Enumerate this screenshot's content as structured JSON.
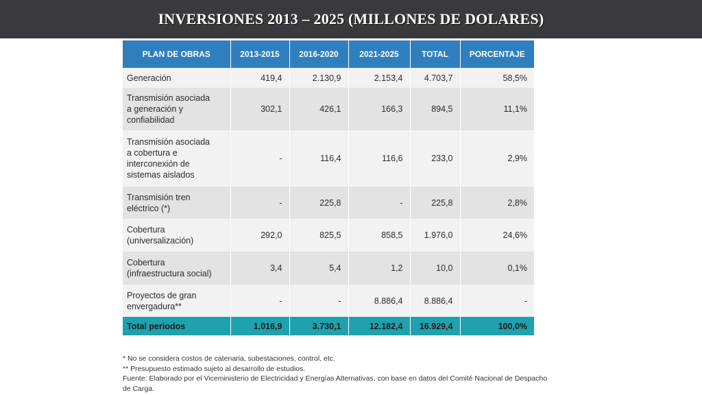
{
  "title": "INVERSIONES 2013 – 2025 (MILLONES DE DOLARES)",
  "table": {
    "headers": [
      "PLAN DE OBRAS",
      "2013-2015",
      "2016-2020",
      "2021-2025",
      "TOTAL",
      "PORCENTAJE"
    ],
    "rows": [
      {
        "label": "Generación",
        "values": [
          "419,4",
          "2.130,9",
          "2.153,4",
          "4.703,7",
          "58,5%"
        ]
      },
      {
        "label": "Transmisión asociada\na generación y\nconfiabilidad",
        "values": [
          "302,1",
          "426,1",
          "166,3",
          "894,5",
          "11,1%"
        ]
      },
      {
        "label": "Transmisión asociada\na cobertura e\ninterconexión de\nsistemas aislados",
        "values": [
          "-",
          "116,4",
          "116,6",
          "233,0",
          "2,9%"
        ]
      },
      {
        "label": "Transmisión tren\neléctrico (*)",
        "values": [
          "-",
          "225,8",
          "-",
          "225,8",
          "2,8%"
        ]
      },
      {
        "label": "Cobertura\n(universalización)",
        "values": [
          "292,0",
          "825,5",
          "858,5",
          "1.976,0",
          "24,6%"
        ]
      },
      {
        "label": "Cobertura\n(infraestructura social)",
        "values": [
          "3,4",
          "5,4",
          "1,2",
          "10,0",
          "0,1%"
        ]
      },
      {
        "label": "Proyectos de gran\nenvergadura**",
        "values": [
          "-",
          "-",
          "8.886,4",
          "8.886,4",
          "-"
        ]
      }
    ],
    "total": {
      "label": "Total periodos",
      "values": [
        "1.016,9",
        "3.730,1",
        "12.182,4",
        "16.929,4",
        "100,0%"
      ]
    }
  },
  "notes": [
    "*  No se considera costos de catenaria, subestaciones, control, etc.",
    "** Presupuesto estimado sujeto al desarrollo de estudios.",
    "Fuente: Elaborado por el Viceministerio de Electricidad y Energías Alternativas, con base en datos del Comité Nacional de Despacho de Carga."
  ]
}
